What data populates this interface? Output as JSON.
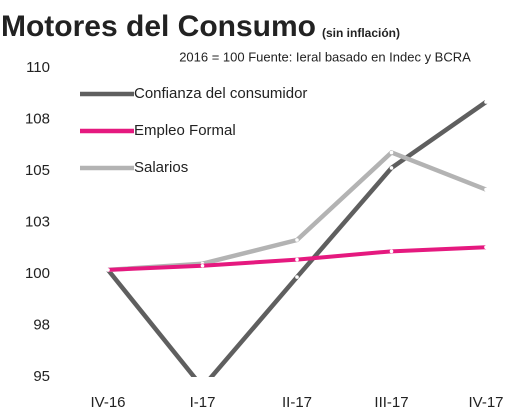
{
  "chart_data": {
    "type": "line",
    "title": "Motores del Consumo",
    "title_note": "(sin inflación)",
    "subtitle": "2016 = 100 Fuente: Ieral basado en Indec y BCRA",
    "categories": [
      "IV-16",
      "I-17",
      "II-17",
      "III-17",
      "IV-17"
    ],
    "series": [
      {
        "name": "Confianza del consumidor",
        "color": "#5f5f5f",
        "values": [
          100.2,
          94.5,
          99.85,
          105.15,
          108.35
        ]
      },
      {
        "name": "Empleo Formal",
        "color": "#e5197f",
        "values": [
          100.2,
          100.4,
          100.7,
          101.1,
          101.3
        ]
      },
      {
        "name": "Salarios",
        "color": "#b3b3b3",
        "values": [
          100.2,
          100.5,
          101.65,
          105.9,
          104.1
        ]
      }
    ],
    "ylim": [
      95,
      110
    ],
    "yticks": [
      95,
      {
        "value": 97.5,
        "label": "98"
      },
      100,
      {
        "value": 102.5,
        "label": "103"
      },
      105,
      {
        "value": 107.5,
        "label": "108"
      },
      110
    ],
    "grid": false
  }
}
